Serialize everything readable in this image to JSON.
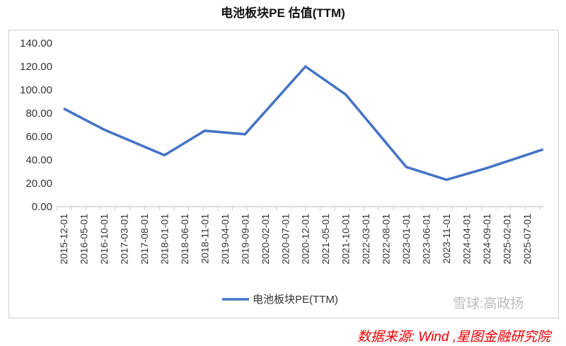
{
  "chart_data": {
    "type": "line",
    "title": "电池板块PE 估值(TTM)",
    "xlabel": "",
    "ylabel": "",
    "ylim": [
      0,
      140
    ],
    "yticks": [
      "0.00",
      "20.00",
      "40.00",
      "60.00",
      "80.00",
      "100.00",
      "120.00",
      "140.00"
    ],
    "xticks": [
      "2015-12-01",
      "2016-05-01",
      "2016-10-01",
      "2017-03-01",
      "2017-08-01",
      "2018-01-01",
      "2018-06-01",
      "2018-11-01",
      "2019-04-01",
      "2019-09-01",
      "2020-02-01",
      "2020-07-01",
      "2020-12-01",
      "2021-05-01",
      "2021-10-01",
      "2022-03-01",
      "2022-08-01",
      "2023-01-01",
      "2023-06-01",
      "2023-11-01",
      "2024-04-01",
      "2024-09-01",
      "2025-02-01",
      "2025-07-01"
    ],
    "grid": false,
    "legend_position": "bottom",
    "series": [
      {
        "name": "电池板块PE(TTM)",
        "color": "#4472C4",
        "x": [
          "2015-12-01",
          "2016-10-01",
          "2018-01-01",
          "2018-11-01",
          "2019-09-01",
          "2020-12-01",
          "2021-10-01",
          "2023-01-01",
          "2023-11-01",
          "2024-09-01",
          "2025-11-01"
        ],
        "y": [
          84,
          66,
          44,
          65,
          62,
          120,
          96,
          34,
          23,
          33,
          49
        ]
      }
    ]
  },
  "source": "数据来源:  Wind ,星图金融研究院",
  "watermark": "雪球:高政扬"
}
